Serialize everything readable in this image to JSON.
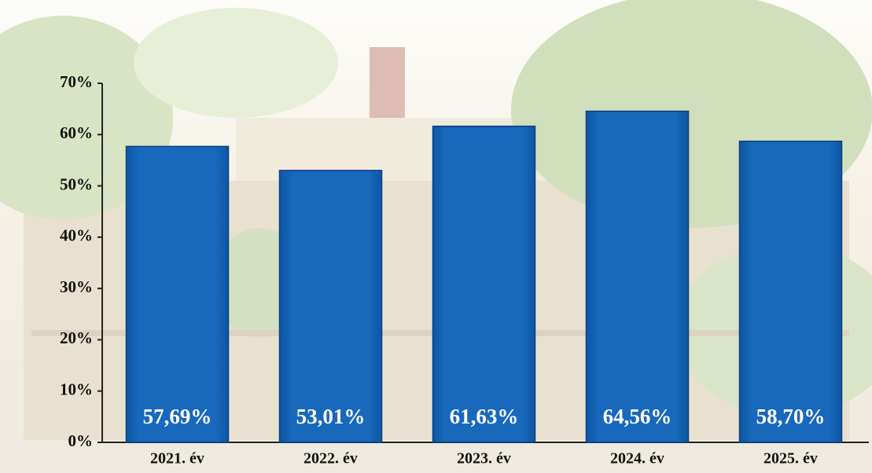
{
  "chart_data": {
    "type": "bar",
    "categories": [
      "2021. év",
      "2022. év",
      "2023. év",
      "2024. év",
      "2025. év"
    ],
    "values": [
      57.69,
      53.01,
      61.63,
      64.56,
      58.7
    ],
    "value_labels": [
      "57,69%",
      "53,01%",
      "61,63%",
      "64,56%",
      "58,70%"
    ],
    "color": "#1463b5",
    "ylim": [
      0,
      70
    ],
    "yticks": [
      {
        "value": 0,
        "label": "0%"
      },
      {
        "value": 10,
        "label": "10%"
      },
      {
        "value": 20,
        "label": "20%"
      },
      {
        "value": 30,
        "label": "30%"
      },
      {
        "value": 40,
        "label": "40%"
      },
      {
        "value": 50,
        "label": "50%"
      },
      {
        "value": 60,
        "label": "60%"
      },
      {
        "value": 70,
        "label": "70%"
      }
    ]
  }
}
